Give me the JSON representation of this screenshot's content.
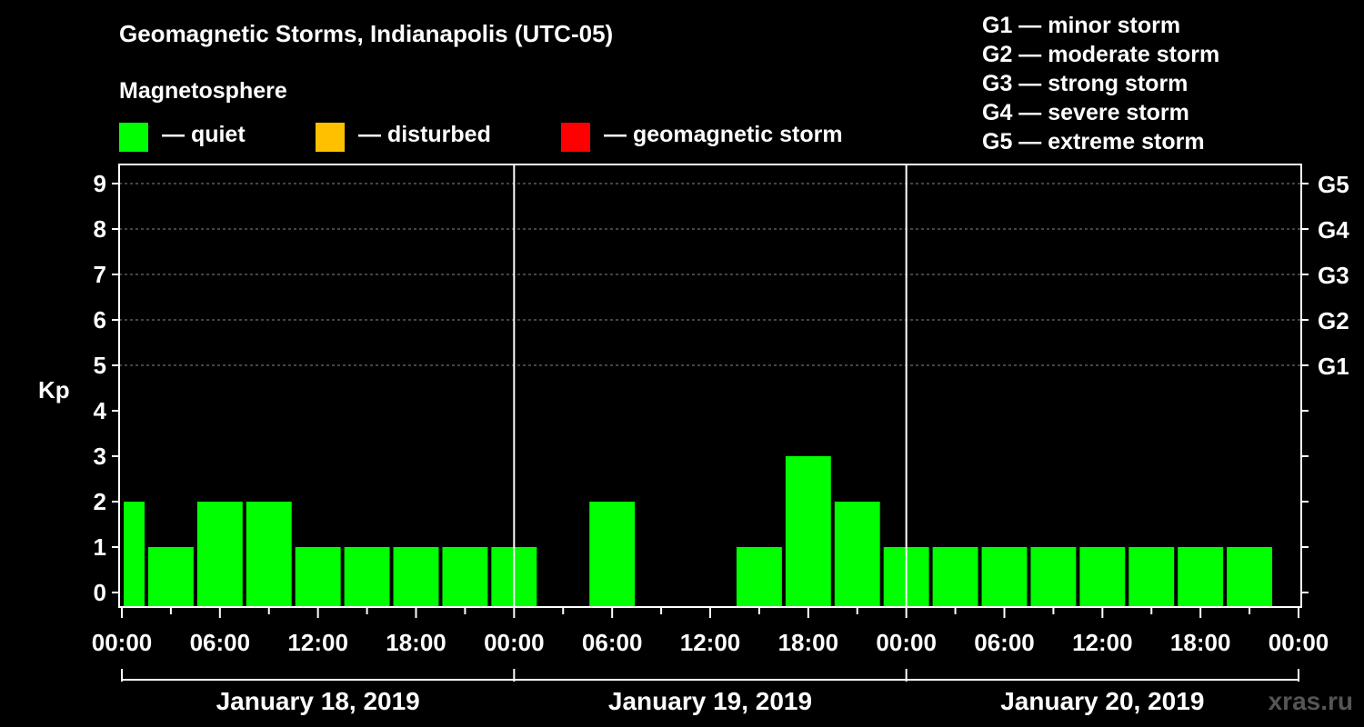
{
  "header": {
    "title": "Geomagnetic Storms, Indianapolis (UTC-05)",
    "subtitle": "Magnetosphere"
  },
  "legend": [
    {
      "label": "— quiet",
      "color": "#00ff00"
    },
    {
      "label": "— disturbed",
      "color": "#ffc000"
    },
    {
      "label": "— geomagnetic storm",
      "color": "#ff0000"
    }
  ],
  "storm_scale": [
    "G1 — minor storm",
    "G2 — moderate storm",
    "G3 — strong storm",
    "G4 — severe storm",
    "G5 — extreme storm"
  ],
  "watermark": "xras.ru",
  "chart_data": {
    "type": "bar",
    "ylabel": "Kp",
    "ylim": [
      0,
      9
    ],
    "yticks": [
      "0",
      "1",
      "2",
      "3",
      "4",
      "5",
      "6",
      "7",
      "8",
      "9"
    ],
    "right_ticks": [
      {
        "kp": 5,
        "label": "G1"
      },
      {
        "kp": 6,
        "label": "G2"
      },
      {
        "kp": 7,
        "label": "G3"
      },
      {
        "kp": 8,
        "label": "G4"
      },
      {
        "kp": 9,
        "label": "G5"
      }
    ],
    "grid": "horizontal dashed at Kp 5-9",
    "x_tick_labels": [
      "00:00",
      "06:00",
      "12:00",
      "18:00",
      "00:00",
      "06:00",
      "12:00",
      "18:00",
      "00:00",
      "06:00",
      "12:00",
      "18:00",
      "00:00"
    ],
    "days": [
      "January 18, 2019",
      "January 19, 2019",
      "January 20, 2019"
    ],
    "series": [
      {
        "values": [
          {
            "start_hour": 0,
            "end_hour": 1.5,
            "kp": 2
          },
          {
            "start_hour": 1.5,
            "end_hour": 4.5,
            "kp": 1
          },
          {
            "start_hour": 4.5,
            "end_hour": 7.5,
            "kp": 2
          },
          {
            "start_hour": 7.5,
            "end_hour": 10.5,
            "kp": 2
          },
          {
            "start_hour": 10.5,
            "end_hour": 13.5,
            "kp": 1
          },
          {
            "start_hour": 13.5,
            "end_hour": 16.5,
            "kp": 1
          },
          {
            "start_hour": 16.5,
            "end_hour": 19.5,
            "kp": 1
          },
          {
            "start_hour": 19.5,
            "end_hour": 22.5,
            "kp": 1
          },
          {
            "start_hour": 22.5,
            "end_hour": 25.5,
            "kp": 1
          },
          {
            "start_hour": 28.5,
            "end_hour": 31.5,
            "kp": 2
          },
          {
            "start_hour": 37.5,
            "end_hour": 40.5,
            "kp": 1
          },
          {
            "start_hour": 40.5,
            "end_hour": 43.5,
            "kp": 3
          },
          {
            "start_hour": 43.5,
            "end_hour": 46.5,
            "kp": 2
          },
          {
            "start_hour": 46.5,
            "end_hour": 49.5,
            "kp": 1
          },
          {
            "start_hour": 49.5,
            "end_hour": 52.5,
            "kp": 1
          },
          {
            "start_hour": 52.5,
            "end_hour": 55.5,
            "kp": 1
          },
          {
            "start_hour": 55.5,
            "end_hour": 58.5,
            "kp": 1
          },
          {
            "start_hour": 58.5,
            "end_hour": 61.5,
            "kp": 1
          },
          {
            "start_hour": 61.5,
            "end_hour": 64.5,
            "kp": 1
          },
          {
            "start_hour": 64.5,
            "end_hour": 67.5,
            "kp": 1
          },
          {
            "start_hour": 67.5,
            "end_hour": 70.5,
            "kp": 1
          }
        ]
      }
    ]
  }
}
